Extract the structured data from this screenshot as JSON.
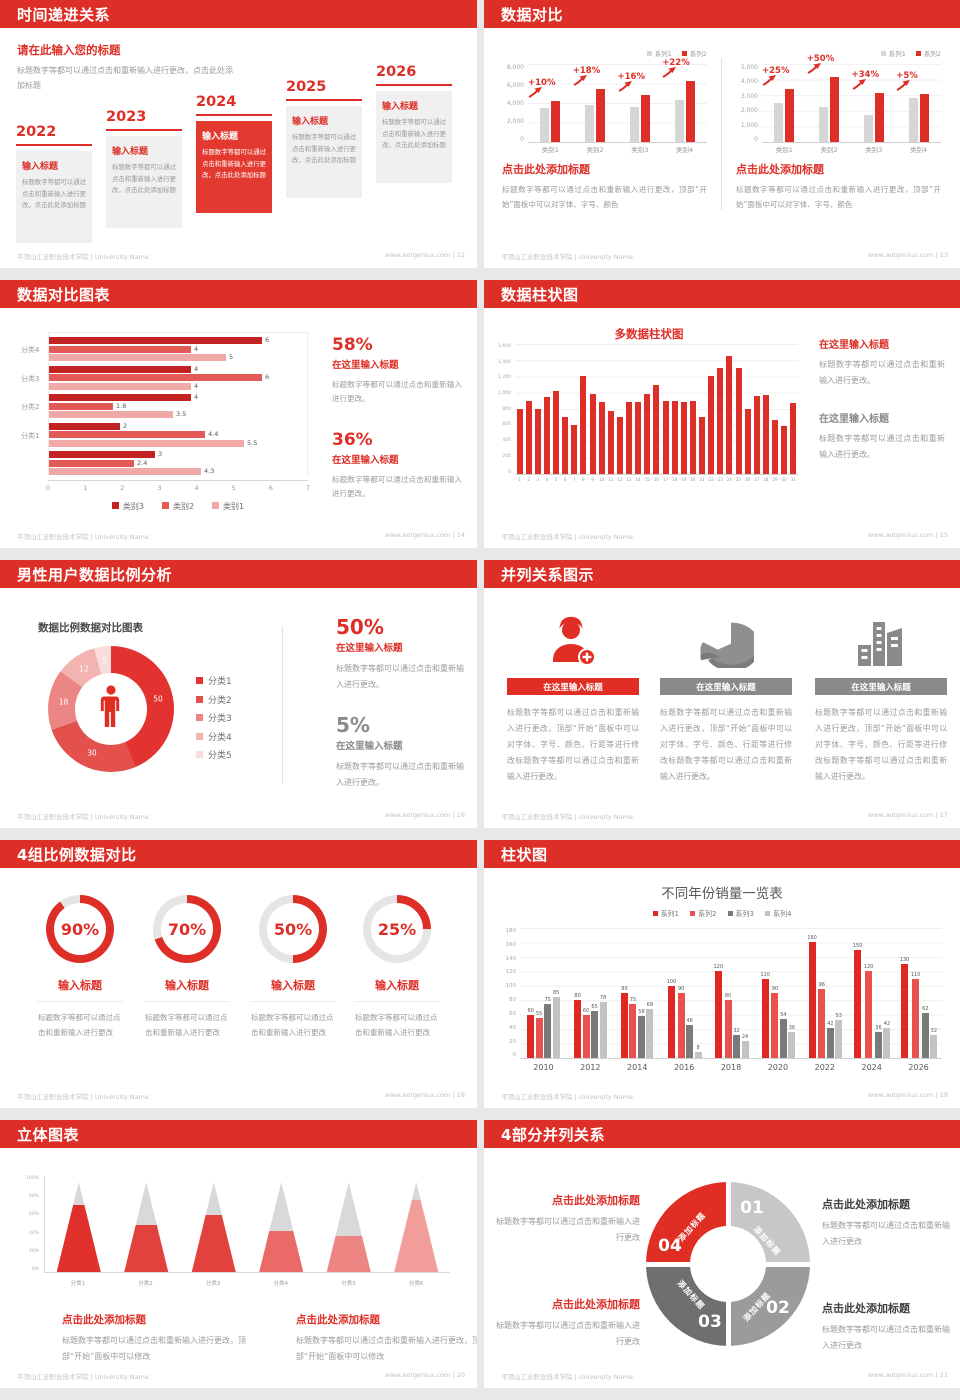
{
  "footer": {
    "org": "平顶山工业职业技术学院 | University Name",
    "site": "www.aotgenius.com",
    "sep": "|"
  },
  "colors": {
    "accent_red": "#dd2f27",
    "gray_text": "#9a9a9a",
    "dark_text": "#595959",
    "panel_gray": "#8a8a8a"
  },
  "slides": [
    {
      "title": "时间递进关系",
      "page": "12",
      "intro_title": "请在此输入您的标题",
      "intro_text": "标题数字等都可以通过点击和重新输入进行更改，点击此处添加标题",
      "steps": [
        {
          "year": "2022",
          "title": "输入标题",
          "text": "标题数字等都可以通过点击和重新输入进行更改，点击此处添加标题"
        },
        {
          "year": "2023",
          "title": "输入标题",
          "text": "标题数字等都可以通过点击和重新输入进行更改，点击此处添加标题"
        },
        {
          "year": "2024",
          "title": "输入标题",
          "text": "标题数字等都可以通过点击和重新输入进行更改，点击此处添加标题"
        },
        {
          "year": "2025",
          "title": "输入标题",
          "text": "标题数字等都可以通过点击和重新输入进行更改，点击此处添加标题"
        },
        {
          "year": "2026",
          "title": "输入标题",
          "text": "标题数字等都可以通过点击和重新输入进行更改，点击此处添加标题"
        }
      ]
    },
    {
      "title": "数据对比",
      "page": "13",
      "blocks": [
        {
          "heading": "点击此处添加标题",
          "text": "标题数字等都可以通过点击和重新输入进行更改，顶部“开始”面板中可以对字体、字号、颜色"
        },
        {
          "heading": "点击此处添加标题",
          "text": "标题数字等都可以通过点击和重新输入进行更改，顶部“开始”面板中可以对字体、字号、颜色"
        }
      ]
    },
    {
      "title": "数据对比图表",
      "page": "14",
      "stats": [
        {
          "pct": "58%",
          "heading": "在这里输入标题",
          "text": "标题数字等都可以通过点击和重新输入进行更改。"
        },
        {
          "pct": "36%",
          "heading": "在这里输入标题",
          "text": "标题数字等都可以通过点击和重新输入进行更改。"
        }
      ]
    },
    {
      "title": "数据柱状图",
      "page": "15",
      "notes": [
        {
          "heading": "在这里输入标题",
          "text": "标题数字等都可以通过点击和重新输入进行更改。"
        },
        {
          "heading": "在这里输入标题",
          "text": "标题数字等都可以通过点击和重新输入进行更改。"
        }
      ]
    },
    {
      "title": "男性用户数据比例分析",
      "page": "16",
      "stats": [
        {
          "pct": "50%",
          "heading": "在这里输入标题",
          "text": "标题数字等都可以通过点击和重新输入进行更改。"
        },
        {
          "pct": "5%",
          "heading": "在这里输入标题",
          "text": "标题数字等都可以通过点击和重新输入进行更改。"
        }
      ]
    },
    {
      "title": "并列关系图示",
      "page": "17",
      "columns": [
        {
          "icon": "nurse-plus-icon",
          "color": "#e02e24",
          "banner": "在这里输入标题",
          "text": "标题数字等都可以通过点击和重新输入进行更改，顶部“开始”面板中可以对字体、字号、颜色、行距等进行修改标题数字等都可以通过点击和重新输入进行更改。"
        },
        {
          "icon": "pie-3d-icon",
          "color": "#8a8a8a",
          "banner": "在这里输入标题",
          "text": "标题数字等都可以通过点击和重新输入进行更改，顶部“开始”面板中可以对字体、字号、颜色、行距等进行修改标题数字等都可以通过点击和重新输入进行更改。"
        },
        {
          "icon": "building-icon",
          "color": "#8a8a8a",
          "banner": "在这里输入标题",
          "text": "标题数字等都可以通过点击和重新输入进行更改，顶部“开始”面板中可以对字体、字号、颜色、行距等进行修改标题数字等都可以通过点击和重新输入进行更改。"
        }
      ]
    },
    {
      "title": "4组比例数据对比",
      "page": "18",
      "items": [
        {
          "pct": "90%",
          "heading": "输入标题",
          "text": "标题数字等都可以通过点击和重新输入进行更改"
        },
        {
          "pct": "70%",
          "heading": "输入标题",
          "text": "标题数字等都可以通过点击和重新输入进行更改"
        },
        {
          "pct": "50%",
          "heading": "输入标题",
          "text": "标题数字等都可以通过点击和重新输入进行更改"
        },
        {
          "pct": "25%",
          "heading": "输入标题",
          "text": "标题数字等都可以通过点击和重新输入进行更改"
        }
      ]
    },
    {
      "title": "柱状图",
      "page": "19"
    },
    {
      "title": "立体图表",
      "page": "20",
      "blocks": [
        {
          "heading": "点击此处添加标题",
          "text": "标题数字等都可以通过点击和重新输入进行更改，顶部“开始”面板中可以修改"
        },
        {
          "heading": "点击此处添加标题",
          "text": "标题数字等都可以通过点击和重新输入进行更改，顶部“开始”面板中可以修改"
        }
      ]
    },
    {
      "title": "4部分并列关系",
      "page": "21",
      "left_blocks": [
        {
          "heading": "点击此处添加标题",
          "text": "标题数字等都可以通过点击和重新输入进行更改"
        },
        {
          "heading": "点击此处添加标题",
          "text": "标题数字等都可以通过点击和重新输入进行更改"
        }
      ],
      "right_blocks": [
        {
          "heading": "点击此处添加标题",
          "text": "标题数字等都可以通过点击和重新输入进行更改"
        },
        {
          "heading": "点击此处添加标题",
          "text": "标题数字等都可以通过点击和重新输入进行更改"
        }
      ]
    }
  ],
  "chart_data": {
    "compare_left": {
      "type": "bar",
      "categories": [
        "类别1",
        "类别2",
        "类别3",
        "类别4"
      ],
      "series": [
        {
          "name": "系列1",
          "color": "#d6d6d6",
          "values": [
            3450,
            3800,
            3600,
            4300
          ]
        },
        {
          "name": "系列2",
          "color": "#dd2f27",
          "values": [
            4200,
            5400,
            4800,
            6300
          ]
        }
      ],
      "annotations": [
        "+10%",
        "+18%",
        "+16%",
        "+22%"
      ],
      "ylim": [
        0,
        8000
      ],
      "yticks": [
        "8,000",
        "6,000",
        "4,000",
        "2,000",
        "0"
      ]
    },
    "compare_right": {
      "type": "bar",
      "categories": [
        "类别1",
        "类别2",
        "类别3",
        "类别4"
      ],
      "series": [
        {
          "name": "系列1",
          "color": "#d6d6d6",
          "values": [
            2500,
            2250,
            1750,
            2800
          ]
        },
        {
          "name": "系列2",
          "color": "#dd2f27",
          "values": [
            3400,
            4150,
            3150,
            3100
          ]
        }
      ],
      "annotations": [
        "+25%",
        "+50%",
        "+34%",
        "+5%"
      ],
      "ylim": [
        0,
        5000
      ],
      "yticks": [
        "5,000",
        "4,000",
        "3,000",
        "2,000",
        "1,000",
        "0"
      ]
    },
    "category_hbar": {
      "type": "bar-horizontal",
      "xlim": [
        0,
        7
      ],
      "xticks": [
        "0",
        "1",
        "2",
        "3",
        "4",
        "5",
        "6",
        "7"
      ],
      "groups": [
        {
          "label": "分类4",
          "values": [
            6,
            4,
            5
          ]
        },
        {
          "label": "分类3",
          "values": [
            4,
            6,
            4
          ]
        },
        {
          "label": "分类2",
          "values": [
            4,
            1.8,
            3.5
          ]
        },
        {
          "label": "分类1",
          "values": [
            2,
            4.4,
            5.5
          ]
        },
        {
          "label": "",
          "values": [
            3,
            2.4,
            4.3
          ]
        }
      ],
      "series": [
        {
          "name": "类别3",
          "color": "#c32222"
        },
        {
          "name": "类别2",
          "color": "#e25955"
        },
        {
          "name": "类别1",
          "color": "#f0a9a7"
        }
      ]
    },
    "multi_bar": {
      "type": "bar",
      "title": "多数据柱状图",
      "color": "#dd2f27",
      "x": [
        "1",
        "2",
        "3",
        "4",
        "5",
        "6",
        "7",
        "8",
        "9",
        "10",
        "11",
        "12",
        "13",
        "14",
        "15",
        "16",
        "17",
        "18",
        "19",
        "20",
        "21",
        "22",
        "23",
        "24",
        "25",
        "26",
        "27",
        "28",
        "29",
        "30",
        "31"
      ],
      "values": [
        800,
        900,
        800,
        950,
        1020,
        700,
        600,
        1200,
        980,
        890,
        780,
        700,
        880,
        880,
        990,
        1100,
        900,
        900,
        880,
        900,
        700,
        1200,
        1300,
        1450,
        1300,
        800,
        960,
        970,
        660,
        590,
        870
      ],
      "ylim": [
        0,
        1600
      ],
      "yticks": [
        "1,600",
        "1,400",
        "1,200",
        "1,000",
        "800",
        "600",
        "400",
        "200",
        "0"
      ]
    },
    "ratio_donut": {
      "type": "pie",
      "title": "数据比例数据对比图表",
      "values": [
        50,
        30,
        18,
        12,
        5
      ],
      "labels": [
        "50",
        "30",
        "18",
        "12",
        "5"
      ],
      "legend": [
        "分类1",
        "分类2",
        "分类3",
        "分类4",
        "分类5"
      ],
      "colors": [
        "#e23330",
        "#e4514d",
        "#ec8684",
        "#f3b3b1",
        "#f9dcdb"
      ]
    },
    "progress_rings": {
      "type": "donut-progress",
      "values": [
        90,
        70,
        50,
        25
      ],
      "labels": [
        "90%",
        "70%",
        "50%",
        "25%"
      ],
      "color": "#dd2f27",
      "track": "#e5e5e5"
    },
    "year_sales": {
      "type": "bar",
      "title": "不同年份销量一览表",
      "value_labels": true,
      "categories": [
        "2010",
        "2012",
        "2014",
        "2016",
        "2018",
        "2020",
        "2022",
        "2024",
        "2026"
      ],
      "series": [
        {
          "name": "系列1",
          "color": "#e02724",
          "values": [
            60,
            80,
            90,
            100,
            120,
            110,
            160,
            150,
            130
          ]
        },
        {
          "name": "系列2",
          "color": "#e8514d",
          "values": [
            55,
            60,
            75,
            90,
            80,
            90,
            96,
            120,
            110
          ]
        },
        {
          "name": "系列3",
          "color": "#7a7a7a",
          "values": [
            75,
            65,
            58,
            46,
            32,
            54,
            42,
            36,
            62
          ]
        },
        {
          "name": "系列4",
          "color": "#c3c3c3",
          "values": [
            85,
            78,
            68,
            8,
            24,
            36,
            53,
            42,
            32
          ]
        }
      ],
      "ylim": [
        0,
        180
      ],
      "yticks": [
        "180",
        "160",
        "140",
        "120",
        "100",
        "80",
        "60",
        "40",
        "20",
        "0"
      ]
    },
    "cone_chart": {
      "type": "cone",
      "categories": [
        "分类1",
        "分类2",
        "分类3",
        "分类4",
        "分类5",
        "分类6"
      ],
      "values": [
        75,
        52,
        63,
        46,
        40,
        80
      ],
      "colors": [
        "#e0302c",
        "#e2423e",
        "#e2423e",
        "#e96a66",
        "#ed8683",
        "#f19d9a"
      ],
      "yticks": [
        "100%",
        "80%",
        "60%",
        "40%",
        "20%",
        "0%"
      ]
    },
    "cycle4": {
      "type": "cycle",
      "segments": [
        {
          "num": "01",
          "label": "添加标题",
          "color": "#c7c7c7"
        },
        {
          "num": "02",
          "label": "添加标题",
          "color": "#9b9b9b"
        },
        {
          "num": "03",
          "label": "添加标题",
          "color": "#6f6f6f"
        },
        {
          "num": "04",
          "label": "添加标题",
          "color": "#e02e24"
        }
      ]
    }
  }
}
